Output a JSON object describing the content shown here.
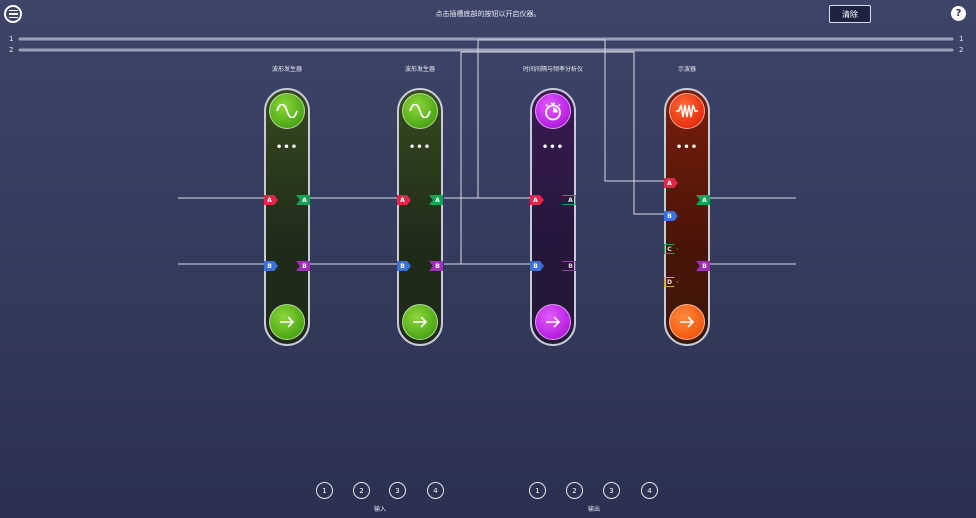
{
  "header": {
    "instruction": "点击插槽底部的按钮以开启仪器。",
    "clear_label": "清除",
    "help_label": "?"
  },
  "bus": {
    "line1_label": "1",
    "line2_label": "2"
  },
  "instruments": [
    {
      "title": "波形发生器",
      "dots": "•••",
      "ports": [
        "A",
        "A",
        "B",
        "B"
      ]
    },
    {
      "title": "波形发生器",
      "dots": "•••",
      "ports": [
        "A",
        "A",
        "B",
        "B"
      ]
    },
    {
      "title": "时间间隔与频率分析仪",
      "dots": "•••",
      "ports": [
        "A",
        "A",
        "B",
        "B"
      ]
    },
    {
      "title": "示波器",
      "dots": "•••",
      "ports": [
        "A",
        "A",
        "B",
        "B",
        "C",
        "D"
      ]
    }
  ],
  "footer": {
    "inputs": [
      "1",
      "2",
      "3",
      "4"
    ],
    "inputs_label": "输入",
    "outputs": [
      "1",
      "2",
      "3",
      "4"
    ],
    "outputs_label": "输出"
  },
  "icons": {
    "menu": "menu-icon",
    "sine": "sine-wave-icon",
    "timer": "stopwatch-icon",
    "scope": "oscilloscope-wave-icon",
    "arrow": "arrow-right-icon",
    "help": "help-icon"
  }
}
